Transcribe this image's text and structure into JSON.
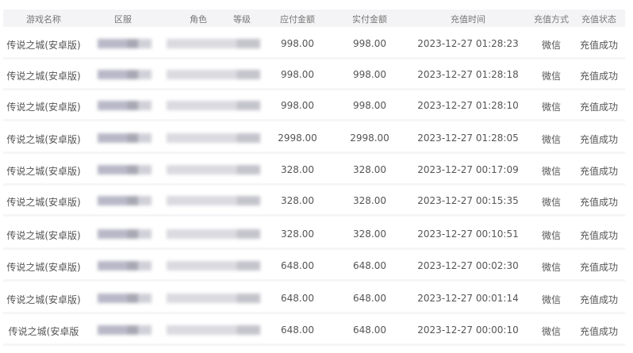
{
  "table": {
    "headers": [
      "游戏名称",
      "区服",
      "角色",
      "等级",
      "应付金额",
      "实付金额",
      "充值时间",
      "充值方式",
      "充值状态"
    ],
    "rows": [
      {
        "game": "传说之城(安卓版)",
        "payable": "998.00",
        "paid": "998.00",
        "time": "2023-12-27 01:28:23",
        "method": "微信",
        "status": "充值成功"
      },
      {
        "game": "传说之城(安卓版)",
        "payable": "998.00",
        "paid": "998.00",
        "time": "2023-12-27 01:28:18",
        "method": "微信",
        "status": "充值成功"
      },
      {
        "game": "传说之城(安卓版)",
        "payable": "998.00",
        "paid": "998.00",
        "time": "2023-12-27 01:28:10",
        "method": "微信",
        "status": "充值成功"
      },
      {
        "game": "传说之城(安卓版)",
        "payable": "2998.00",
        "paid": "2998.00",
        "time": "2023-12-27 01:28:05",
        "method": "微信",
        "status": "充值成功"
      },
      {
        "game": "传说之城(安卓版)",
        "payable": "328.00",
        "paid": "328.00",
        "time": "2023-12-27 00:17:09",
        "method": "微信",
        "status": "充值成功"
      },
      {
        "game": "传说之城(安卓版)",
        "payable": "328.00",
        "paid": "328.00",
        "time": "2023-12-27 00:15:35",
        "method": "微信",
        "status": "充值成功"
      },
      {
        "game": "传说之城(安卓版)",
        "payable": "328.00",
        "paid": "328.00",
        "time": "2023-12-27 00:10:51",
        "method": "微信",
        "status": "充值成功"
      },
      {
        "game": "传说之城(安卓版)",
        "payable": "648.00",
        "paid": "648.00",
        "time": "2023-12-27 00:02:30",
        "method": "微信",
        "status": "充值成功"
      },
      {
        "game": "传说之城(安卓版)",
        "payable": "648.00",
        "paid": "648.00",
        "time": "2023-12-27 00:01:14",
        "method": "微信",
        "status": "充值成功"
      },
      {
        "game": "传说之城(安卓版",
        "payable": "648.00",
        "paid": "648.00",
        "time": "2023-12-27 00:00:10",
        "method": "微信",
        "status": "充值成功"
      }
    ]
  }
}
